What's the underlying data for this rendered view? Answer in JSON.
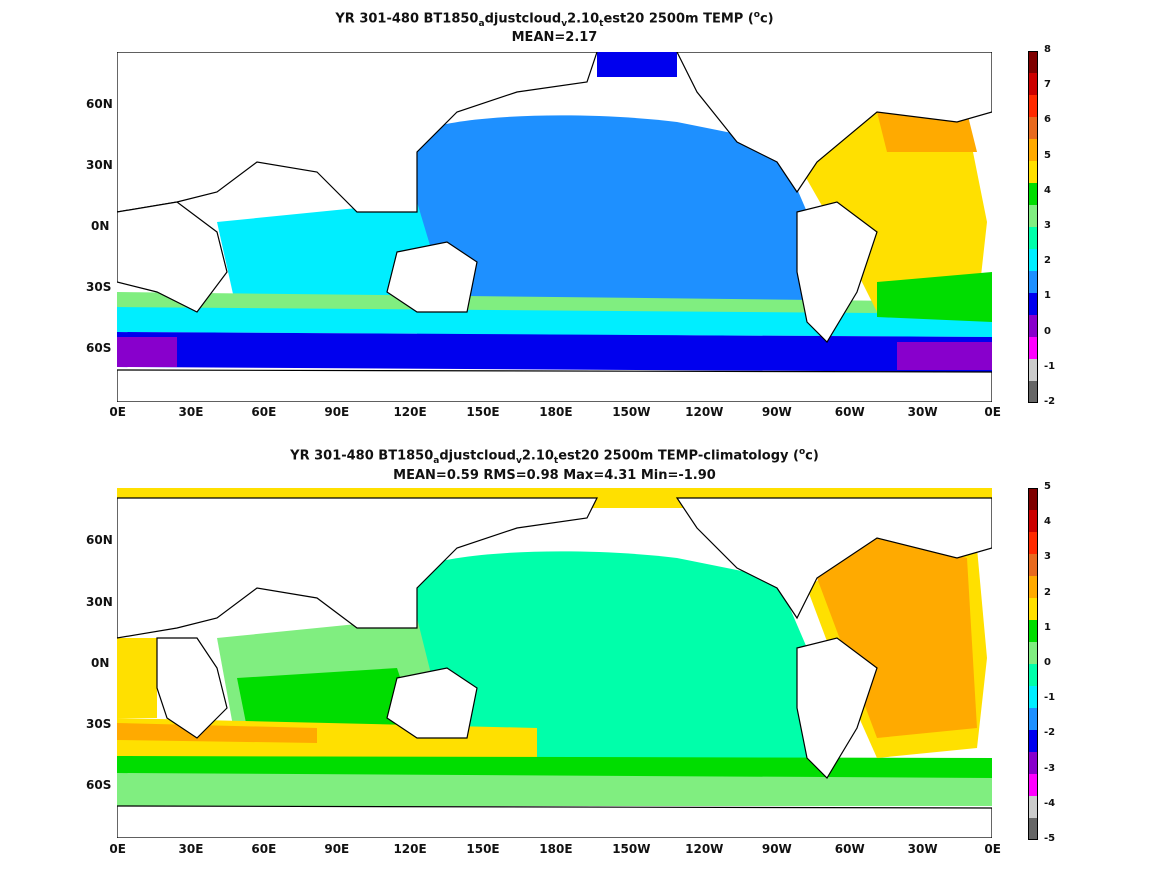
{
  "panels": [
    {
      "title_parts": {
        "a": "YR 301-480 BT1850",
        "s1": "a",
        "b": "djustcloud",
        "s2": "v",
        "c": "2.10",
        "s3": "t",
        "d": "est20 2500m TEMP (",
        "sup": "o",
        "e": "c)"
      },
      "subtitle": "MEAN=2.17",
      "colorbar": {
        "labels": [
          "8",
          "7",
          "6",
          "5",
          "4",
          "3",
          "2",
          "1",
          "0",
          "-1",
          "-2"
        ],
        "colors": [
          "#7f0000",
          "#cc0000",
          "#ff2a00",
          "#e86a1e",
          "#ffaa00",
          "#ffe000",
          "#00dd00",
          "#80ee80",
          "#00ffaa",
          "#00eeff",
          "#1e90ff",
          "#0000ee",
          "#8800cc",
          "#ff00ff",
          "#cccccc",
          "#666666"
        ]
      }
    },
    {
      "title_parts": {
        "a": "YR 301-480 BT1850",
        "s1": "a",
        "b": "djustcloud",
        "s2": "v",
        "c": "2.10",
        "s3": "t",
        "d": "est20 2500m TEMP-climatology (",
        "sup": "o",
        "e": "c)"
      },
      "subtitle": "MEAN=0.59   RMS=0.98   Max=4.31   Min=-1.90",
      "colorbar": {
        "labels": [
          "5",
          "4",
          "3",
          "2",
          "1",
          "0",
          "-1",
          "-2",
          "-3",
          "-4",
          "-5"
        ],
        "colors": [
          "#7f0000",
          "#cc0000",
          "#ff2a00",
          "#e86a1e",
          "#ffaa00",
          "#ffe000",
          "#00dd00",
          "#80ee80",
          "#00ffaa",
          "#00eeff",
          "#1e90ff",
          "#0000ee",
          "#8800cc",
          "#ff00ff",
          "#cccccc",
          "#666666"
        ]
      }
    }
  ],
  "lon_ticks": [
    "0E",
    "30E",
    "60E",
    "90E",
    "120E",
    "150E",
    "180E",
    "150W",
    "120W",
    "90W",
    "60W",
    "30W",
    "0E"
  ],
  "lat_ticks": [
    "60N",
    "30N",
    "0N",
    "30S",
    "60S"
  ]
}
